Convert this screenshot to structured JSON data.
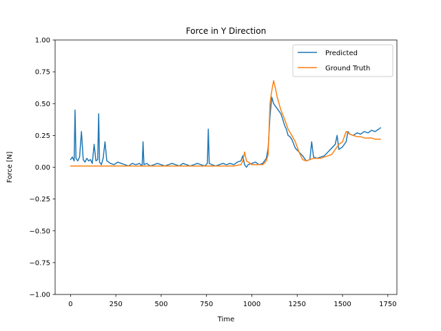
{
  "chart_data": {
    "type": "line",
    "title": "Force in Y Direction",
    "xlabel": "Time",
    "ylabel": "Force [N]",
    "xlim": [
      -85,
      1800
    ],
    "ylim": [
      -1.0,
      1.0
    ],
    "xticks": [
      0,
      250,
      500,
      750,
      1000,
      1250,
      1500,
      1750
    ],
    "xtick_labels": [
      "0",
      "250",
      "500",
      "750",
      "1000",
      "1250",
      "1500",
      "1750"
    ],
    "yticks": [
      -1.0,
      -0.75,
      -0.5,
      -0.25,
      0.0,
      0.25,
      0.5,
      0.75,
      1.0
    ],
    "ytick_labels": [
      "−1.00",
      "−0.75",
      "−0.50",
      "−0.25",
      "0.00",
      "0.25",
      "0.50",
      "0.75",
      "1.00"
    ],
    "grid": false,
    "legend_position": "top-right",
    "series": [
      {
        "name": "Predicted",
        "color": "#1f77b4",
        "x": [
          0,
          10,
          20,
          25,
          30,
          40,
          50,
          60,
          70,
          80,
          90,
          100,
          110,
          120,
          130,
          140,
          150,
          155,
          160,
          170,
          180,
          190,
          200,
          220,
          240,
          260,
          280,
          300,
          320,
          340,
          360,
          380,
          395,
          400,
          405,
          420,
          440,
          460,
          480,
          500,
          520,
          540,
          560,
          580,
          600,
          620,
          640,
          660,
          680,
          700,
          720,
          740,
          755,
          760,
          765,
          780,
          800,
          820,
          840,
          860,
          880,
          900,
          920,
          940,
          950,
          960,
          970,
          980,
          1000,
          1020,
          1040,
          1060,
          1080,
          1090,
          1100,
          1110,
          1120,
          1130,
          1140,
          1150,
          1160,
          1170,
          1180,
          1190,
          1200,
          1210,
          1220,
          1240,
          1260,
          1280,
          1300,
          1320,
          1330,
          1340,
          1360,
          1380,
          1400,
          1420,
          1440,
          1460,
          1470,
          1480,
          1500,
          1520,
          1530,
          1540,
          1560,
          1580,
          1600,
          1620,
          1640,
          1660,
          1680,
          1700,
          1710
        ],
        "y": [
          0.06,
          0.08,
          0.05,
          0.45,
          0.07,
          0.05,
          0.08,
          0.28,
          0.06,
          0.04,
          0.07,
          0.05,
          0.06,
          0.03,
          0.18,
          0.05,
          0.06,
          0.42,
          0.04,
          0.02,
          0.07,
          0.2,
          0.05,
          0.03,
          0.02,
          0.04,
          0.03,
          0.02,
          0.01,
          0.03,
          0.02,
          0.03,
          0.01,
          0.2,
          0.02,
          0.03,
          0.01,
          0.02,
          0.03,
          0.02,
          0.01,
          0.02,
          0.03,
          0.02,
          0.01,
          0.03,
          0.02,
          0.01,
          0.02,
          0.03,
          0.02,
          0.01,
          0.03,
          0.3,
          0.03,
          0.02,
          0.01,
          0.02,
          0.03,
          0.02,
          0.03,
          0.02,
          0.04,
          0.05,
          0.09,
          0.02,
          0.0,
          0.02,
          0.03,
          0.04,
          0.02,
          0.03,
          0.07,
          0.15,
          0.4,
          0.55,
          0.5,
          0.48,
          0.46,
          0.44,
          0.42,
          0.38,
          0.33,
          0.3,
          0.25,
          0.24,
          0.22,
          0.15,
          0.12,
          0.09,
          0.05,
          0.06,
          0.2,
          0.08,
          0.07,
          0.08,
          0.09,
          0.12,
          0.15,
          0.18,
          0.25,
          0.14,
          0.16,
          0.2,
          0.28,
          0.26,
          0.25,
          0.27,
          0.26,
          0.28,
          0.27,
          0.29,
          0.28,
          0.3,
          0.31
        ]
      },
      {
        "name": "Ground Truth",
        "color": "#ff7f0e",
        "x": [
          0,
          100,
          200,
          300,
          400,
          500,
          600,
          700,
          800,
          900,
          940,
          950,
          960,
          970,
          1000,
          1040,
          1060,
          1080,
          1090,
          1100,
          1110,
          1120,
          1130,
          1140,
          1150,
          1160,
          1180,
          1200,
          1220,
          1240,
          1260,
          1280,
          1300,
          1320,
          1340,
          1360,
          1380,
          1400,
          1420,
          1440,
          1460,
          1480,
          1500,
          1520,
          1540,
          1560,
          1580,
          1600,
          1620,
          1640,
          1660,
          1680,
          1700,
          1710
        ],
        "y": [
          0.01,
          0.01,
          0.01,
          0.01,
          0.01,
          0.01,
          0.01,
          0.01,
          0.01,
          0.01,
          0.02,
          0.05,
          0.12,
          0.05,
          0.02,
          0.02,
          0.02,
          0.05,
          0.1,
          0.5,
          0.6,
          0.68,
          0.62,
          0.55,
          0.5,
          0.45,
          0.38,
          0.3,
          0.25,
          0.2,
          0.12,
          0.06,
          0.05,
          0.06,
          0.07,
          0.07,
          0.07,
          0.08,
          0.09,
          0.1,
          0.14,
          0.18,
          0.2,
          0.28,
          0.26,
          0.25,
          0.24,
          0.24,
          0.23,
          0.23,
          0.23,
          0.22,
          0.22,
          0.22
        ]
      }
    ]
  }
}
